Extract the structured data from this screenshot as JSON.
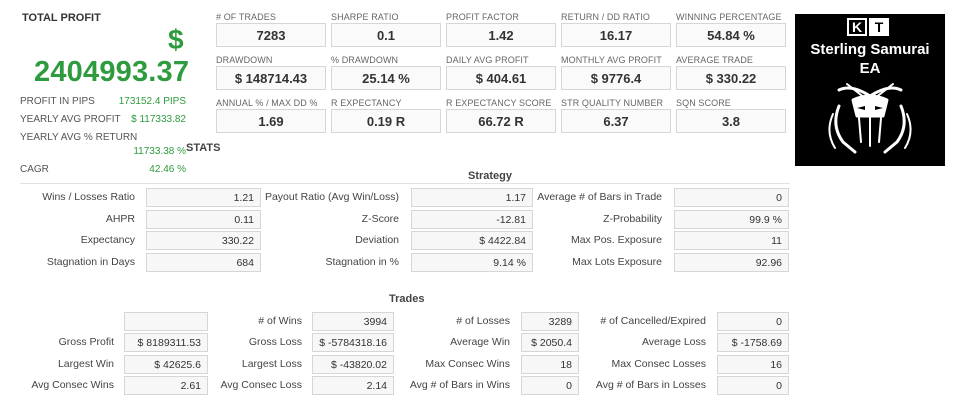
{
  "summary": {
    "total_profit_label": "TOTAL PROFIT",
    "currency_symbol": "$",
    "total_profit_value": "2404993.37",
    "rows": [
      {
        "label": "PROFIT IN PIPS",
        "value": "173152.4 PIPS"
      },
      {
        "label": "YEARLY AVG PROFIT",
        "value": "$ 117333.82"
      },
      {
        "label": "YEARLY AVG % RETURN",
        "value": "11733.38 %"
      },
      {
        "label": "CAGR",
        "value": "42.46 %"
      }
    ]
  },
  "metrics": [
    {
      "label": "# OF TRADES",
      "value": "7283"
    },
    {
      "label": "SHARPE RATIO",
      "value": "0.1"
    },
    {
      "label": "PROFIT FACTOR",
      "value": "1.42"
    },
    {
      "label": "RETURN / DD RATIO",
      "value": "16.17"
    },
    {
      "label": "WINNING PERCENTAGE",
      "value": "54.84 %"
    },
    {
      "label": "DRAWDOWN",
      "value": "$ 148714.43"
    },
    {
      "label": "% DRAWDOWN",
      "value": "25.14 %"
    },
    {
      "label": "DAILY AVG PROFIT",
      "value": "$ 404.61"
    },
    {
      "label": "MONTHLY AVG PROFIT",
      "value": "$ 9776.4"
    },
    {
      "label": "AVERAGE TRADE",
      "value": "$ 330.22"
    },
    {
      "label": "ANNUAL % / MAX DD %",
      "value": "1.69"
    },
    {
      "label": "R EXPECTANCY",
      "value": "0.19 R"
    },
    {
      "label": "R EXPECTANCY SCORE",
      "value": "66.72 R"
    },
    {
      "label": "STR QUALITY NUMBER",
      "value": "6.37"
    },
    {
      "label": "SQN SCORE",
      "value": "3.8"
    }
  ],
  "logo": {
    "kt_k": "K",
    "kt_t": "T",
    "line1": "Sterling Samurai",
    "line2": "EA"
  },
  "stats_title": "STATS",
  "strategy": {
    "title": "Strategy",
    "rows": [
      [
        {
          "label": "Wins / Losses Ratio",
          "value": "1.21"
        },
        {
          "label": "Payout Ratio (Avg Win/Loss)",
          "value": "1.17"
        },
        {
          "label": "Average # of Bars in Trade",
          "value": "0"
        }
      ],
      [
        {
          "label": "AHPR",
          "value": "0.11"
        },
        {
          "label": "Z-Score",
          "value": "-12.81"
        },
        {
          "label": "Z-Probability",
          "value": "99.9 %"
        }
      ],
      [
        {
          "label": "Expectancy",
          "value": "330.22"
        },
        {
          "label": "Deviation",
          "value": "$ 4422.84"
        },
        {
          "label": "Max Pos. Exposure",
          "value": "11"
        }
      ],
      [
        {
          "label": "Stagnation in Days",
          "value": "684"
        },
        {
          "label": "Stagnation in %",
          "value": "9.14 %"
        },
        {
          "label": "Max Lots Exposure",
          "value": "92.96"
        }
      ]
    ]
  },
  "trades": {
    "title": "Trades",
    "rows": [
      [
        {
          "label": "",
          "value": ""
        },
        {
          "label": "# of Wins",
          "value": "3994"
        },
        {
          "label": "# of Losses",
          "value": "3289"
        },
        {
          "label": "# of Cancelled/Expired",
          "value": "0"
        }
      ],
      [
        {
          "label": "Gross Profit",
          "value": "$ 8189311.53"
        },
        {
          "label": "Gross Loss",
          "value": "$ -5784318.16"
        },
        {
          "label": "Average Win",
          "value": "$ 2050.4"
        },
        {
          "label": "Average Loss",
          "value": "$ -1758.69"
        }
      ],
      [
        {
          "label": "Largest Win",
          "value": "$ 42625.6"
        },
        {
          "label": "Largest Loss",
          "value": "$ -43820.02"
        },
        {
          "label": "Max Consec Wins",
          "value": "18"
        },
        {
          "label": "Max Consec Losses",
          "value": "16"
        }
      ],
      [
        {
          "label": "Avg Consec Wins",
          "value": "2.61"
        },
        {
          "label": "Avg Consec Loss",
          "value": "2.14"
        },
        {
          "label": "Avg # of Bars in Wins",
          "value": "0"
        },
        {
          "label": "Avg # of Bars in Losses",
          "value": "0"
        }
      ]
    ]
  },
  "colors": {
    "profit_green": "#2e9b3e",
    "logo_bg": "#000000"
  }
}
